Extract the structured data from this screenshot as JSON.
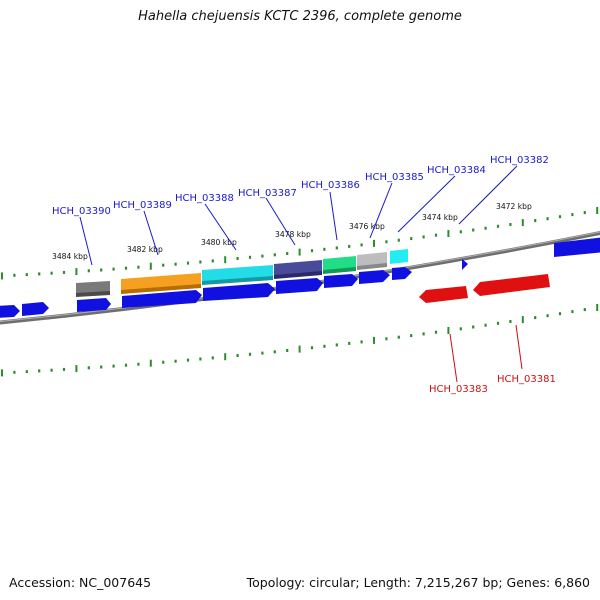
{
  "title": "Hahella chejuensis KCTC 2396, complete genome",
  "footer": {
    "accession": "Accession: NC_007645",
    "summary": "Topology: circular; Length: 7,215,267 bp; Genes: 6,860"
  },
  "scale_labels": [
    "3484 kbp",
    "3482 kbp",
    "3480 kbp",
    "3478 kbp",
    "3476 kbp",
    "3474 kbp",
    "3472 kbp"
  ],
  "genes_forward_labeled": [
    "HCH_03390",
    "HCH_03389",
    "HCH_03388",
    "HCH_03387",
    "HCH_03386",
    "HCH_03385",
    "HCH_03384",
    "HCH_03382"
  ],
  "genes_reverse_labeled": [
    "HCH_03383",
    "HCH_03381"
  ],
  "colors": {
    "forward_label": "#1a1acc",
    "reverse_label": "#cc1111",
    "forward_gene": "#1010e0",
    "reverse_gene": "#e01010",
    "tick": "#2e8b2e",
    "backbone": "#707070",
    "cog_gray": "#7a7a7a",
    "cog_orange": "#f5a020",
    "cog_cyan": "#22dde8",
    "cog_slate": "#4a4a9a",
    "cog_green": "#22dd88",
    "cog_silver": "#bdbdbd"
  }
}
